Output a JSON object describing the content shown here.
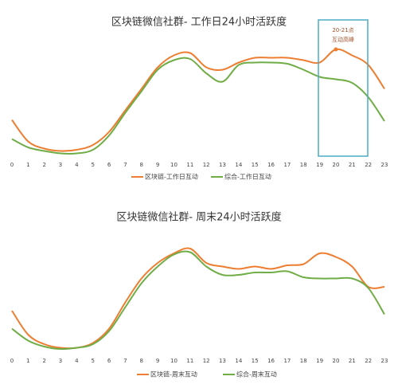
{
  "chart_data": [
    {
      "type": "line",
      "title": "区块链微信社群- 工作日24小时活跃度",
      "categories": [
        "0",
        "1",
        "2",
        "3",
        "4",
        "5",
        "6",
        "7",
        "8",
        "9",
        "10",
        "11",
        "12",
        "13",
        "14",
        "15",
        "16",
        "17",
        "18",
        "19",
        "20",
        "21",
        "22",
        "23"
      ],
      "series": [
        {
          "name": "区块链-工作日互动",
          "color": "#ed7d31",
          "values": [
            33,
            15,
            9,
            7,
            8,
            12,
            23,
            41,
            59,
            77,
            87,
            89,
            77,
            75,
            81,
            85,
            85,
            85,
            83,
            81,
            92,
            87,
            79,
            59
          ]
        },
        {
          "name": "综合-工作日互动",
          "color": "#70ad47",
          "values": [
            17,
            10,
            7,
            5,
            5,
            8,
            20,
            39,
            57,
            75,
            83,
            84,
            72,
            65,
            79,
            81,
            81,
            80,
            75,
            69,
            67,
            64,
            52,
            32
          ]
        }
      ],
      "ylim": [
        0,
        100
      ],
      "annotation": [
        "20-21点",
        "互动高峰"
      ]
    },
    {
      "type": "line",
      "title": "区块链微信社群- 周末24小时活跃度",
      "categories": [
        "0",
        "1",
        "2",
        "3",
        "4",
        "5",
        "6",
        "7",
        "8",
        "9",
        "10",
        "11",
        "12",
        "13",
        "14",
        "15",
        "16",
        "17",
        "18",
        "19",
        "20",
        "21",
        "22",
        "23"
      ],
      "series": [
        {
          "name": "区块链-周末互动",
          "color": "#ed7d31",
          "values": [
            40,
            20,
            12,
            9,
            9,
            13,
            25,
            47,
            67,
            80,
            88,
            92,
            80,
            77,
            75,
            77,
            75,
            78,
            79,
            88,
            85,
            77,
            60,
            60
          ]
        },
        {
          "name": "综合-周末互动",
          "color": "#70ad47",
          "values": [
            25,
            15,
            10,
            8,
            9,
            12,
            23,
            43,
            63,
            77,
            87,
            89,
            77,
            70,
            70,
            72,
            72,
            73,
            68,
            67,
            67,
            67,
            59,
            37
          ]
        }
      ],
      "ylim": [
        0,
        100
      ]
    }
  ]
}
